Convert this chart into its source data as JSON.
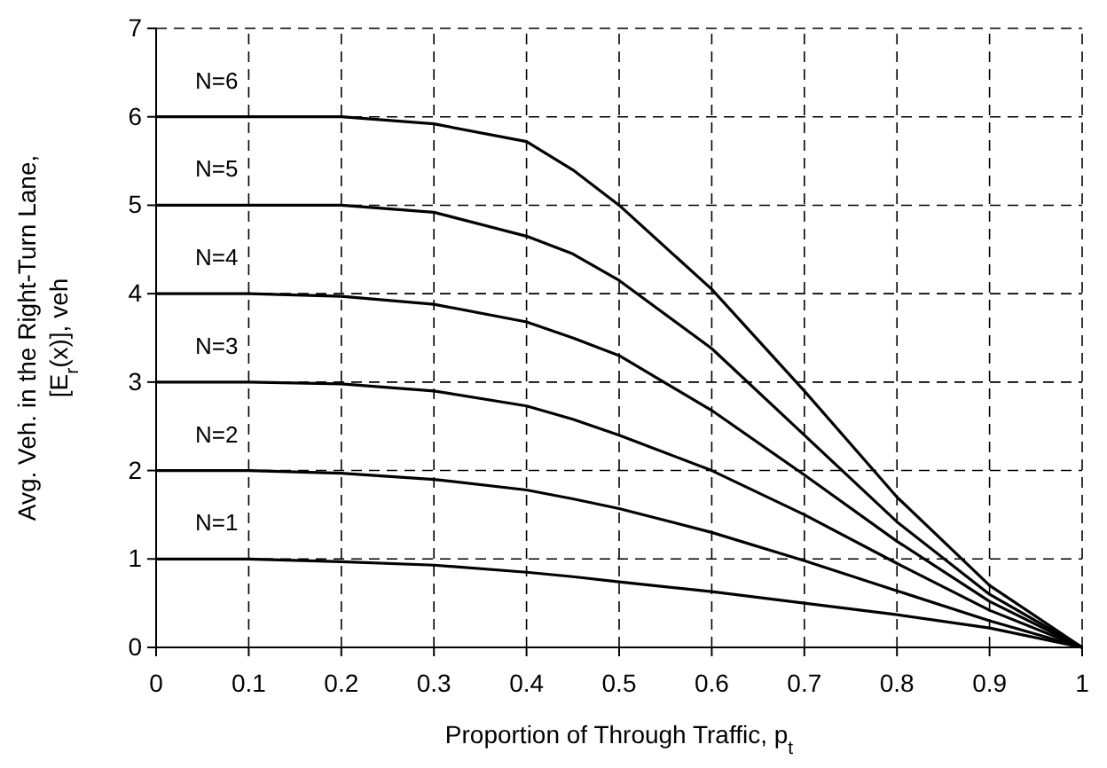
{
  "chart_data": {
    "type": "line",
    "xlabel": "Proportion of Through Traffic, p$_{t}$",
    "ylabel": "Avg. Veh. in the Right-Turn Lane,\n[E$_{r}$(x)], veh",
    "x": [
      0,
      0.1,
      0.2,
      0.3,
      0.4,
      0.45,
      0.5,
      0.6,
      0.7,
      0.8,
      0.9,
      1
    ],
    "series": [
      {
        "name": "N=1",
        "color": "#000000",
        "values": [
          1,
          1,
          0.97,
          0.93,
          0.85,
          0.8,
          0.74,
          0.63,
          0.5,
          0.37,
          0.22,
          0
        ]
      },
      {
        "name": "N=2",
        "color": "#000000",
        "values": [
          2,
          2,
          1.97,
          1.9,
          1.78,
          1.68,
          1.57,
          1.3,
          0.98,
          0.64,
          0.3,
          0
        ]
      },
      {
        "name": "N=3",
        "color": "#000000",
        "values": [
          3,
          3,
          2.98,
          2.9,
          2.73,
          2.58,
          2.4,
          2.0,
          1.5,
          0.95,
          0.42,
          0
        ]
      },
      {
        "name": "N=4",
        "color": "#000000",
        "values": [
          4,
          4,
          3.97,
          3.88,
          3.68,
          3.5,
          3.3,
          2.68,
          1.95,
          1.2,
          0.52,
          0
        ]
      },
      {
        "name": "N=5",
        "color": "#000000",
        "values": [
          5,
          5,
          5,
          4.92,
          4.65,
          4.45,
          4.15,
          3.38,
          2.4,
          1.42,
          0.6,
          0
        ]
      },
      {
        "name": "N=6",
        "color": "#000000",
        "values": [
          6,
          6,
          6,
          5.92,
          5.72,
          5.4,
          5.0,
          4.05,
          2.9,
          1.7,
          0.7,
          0
        ]
      }
    ],
    "xlim": [
      0,
      1
    ],
    "xticks": [
      0,
      0.1,
      0.2,
      0.3,
      0.4,
      0.5,
      0.6,
      0.7,
      0.8,
      0.9,
      1
    ],
    "ylim": [
      0,
      7
    ],
    "yticks": [
      0,
      1,
      2,
      3,
      4,
      5,
      6,
      7
    ],
    "grid": true,
    "marker": "none",
    "line_style": "solid"
  }
}
